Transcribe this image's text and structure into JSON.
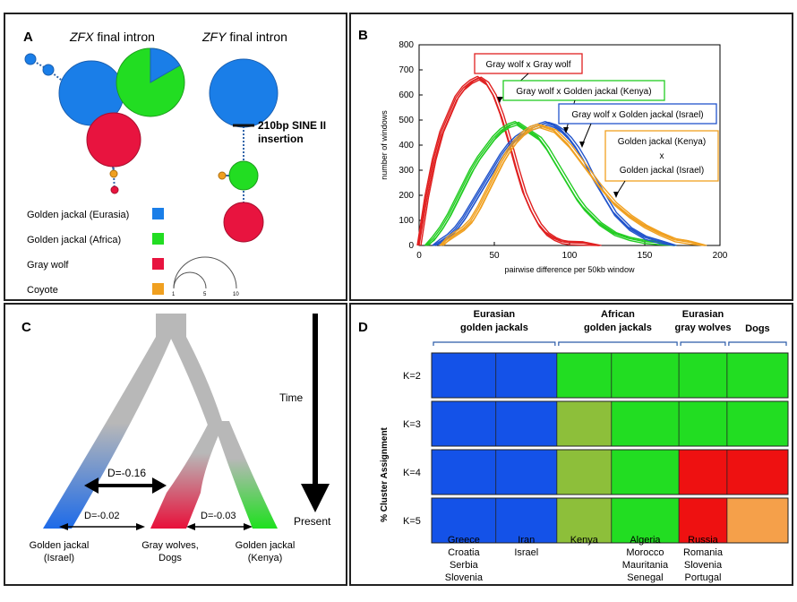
{
  "panelA": {
    "letter": "A",
    "zfx_italic": "ZFX",
    "zfx_rest": " final intron",
    "zfy_italic": "ZFY",
    "zfy_rest": " final intron",
    "sine_line1": "210bp SINE II",
    "sine_line2": "insertion",
    "legend": [
      {
        "label": "Golden jackal (Eurasia)",
        "color": "#1a7ee8"
      },
      {
        "label": "Golden jackal (Africa)",
        "color": "#22dd22"
      },
      {
        "label": "Gray wolf",
        "color": "#e8143f"
      },
      {
        "label": "Coyote",
        "color": "#f0a020"
      }
    ],
    "scale_labels": [
      "1",
      "5",
      "10"
    ]
  },
  "panelC": {
    "letter": "C",
    "time_label": "Time",
    "present_label": "Present",
    "d_main": "D=-0.16",
    "d_left": "D=-0.02",
    "d_right": "D=-0.03",
    "tip_left": [
      "Golden jackal",
      "(Israel)"
    ],
    "tip_mid": [
      "Gray wolves,",
      "Dogs"
    ],
    "tip_right": [
      "Golden jackal",
      "(Kenya)"
    ]
  },
  "chart_data": [
    {
      "type": "line",
      "panel": "B",
      "letter": "B",
      "xlabel": "pairwise difference per 50kb window",
      "ylabel": "number of windows",
      "xlim": [
        0,
        200
      ],
      "ylim": [
        0,
        800
      ],
      "xticks": [
        0,
        50,
        100,
        150,
        200
      ],
      "yticks": [
        0,
        100,
        200,
        300,
        400,
        500,
        600,
        700,
        800
      ],
      "series": [
        {
          "name": "Gray wolf x Gray wolf",
          "color": "#e02020",
          "x": [
            0,
            5,
            10,
            15,
            20,
            25,
            30,
            35,
            40,
            45,
            50,
            55,
            60,
            65,
            70,
            75,
            80,
            85,
            90,
            95,
            100,
            110,
            120
          ],
          "y": [
            0,
            180,
            330,
            440,
            510,
            580,
            620,
            645,
            660,
            640,
            590,
            510,
            410,
            300,
            200,
            130,
            75,
            40,
            20,
            8,
            3,
            1,
            0
          ]
        },
        {
          "name": "Gray wolf x Golden jackal (Kenya)",
          "color": "#22cc22",
          "x": [
            5,
            10,
            15,
            20,
            25,
            30,
            35,
            40,
            45,
            50,
            55,
            60,
            65,
            70,
            75,
            80,
            85,
            90,
            95,
            100,
            105,
            110,
            115,
            120,
            130,
            140,
            150,
            160,
            170
          ],
          "y": [
            0,
            20,
            60,
            110,
            170,
            230,
            290,
            340,
            380,
            420,
            450,
            470,
            480,
            460,
            440,
            420,
            380,
            330,
            280,
            230,
            180,
            140,
            110,
            80,
            40,
            20,
            8,
            3,
            0
          ]
        },
        {
          "name": "Gray wolf x Golden jackal (Israel)",
          "color": "#2255cc",
          "x": [
            10,
            15,
            20,
            25,
            30,
            35,
            40,
            45,
            50,
            55,
            60,
            65,
            70,
            75,
            80,
            85,
            90,
            95,
            100,
            105,
            110,
            115,
            120,
            125,
            130,
            140,
            150,
            160,
            170
          ],
          "y": [
            0,
            10,
            30,
            60,
            100,
            150,
            200,
            250,
            300,
            350,
            390,
            420,
            440,
            460,
            470,
            480,
            470,
            450,
            420,
            380,
            330,
            270,
            220,
            170,
            120,
            60,
            25,
            8,
            0
          ]
        },
        {
          "name": "Golden jackal (Kenya) x Golden jackal (Israel)",
          "color": "#f0a020",
          "x": [
            15,
            20,
            25,
            30,
            35,
            40,
            45,
            50,
            55,
            60,
            65,
            70,
            75,
            80,
            85,
            90,
            95,
            100,
            105,
            110,
            115,
            120,
            130,
            140,
            150,
            160,
            170,
            180,
            190
          ],
          "y": [
            0,
            20,
            40,
            60,
            90,
            140,
            200,
            260,
            320,
            370,
            410,
            440,
            460,
            470,
            460,
            450,
            420,
            390,
            350,
            310,
            270,
            230,
            160,
            110,
            70,
            40,
            15,
            5,
            0
          ]
        }
      ],
      "annotations": [
        {
          "lines": [
            "Gray wolf x Gray wolf"
          ],
          "color": "#e02020"
        },
        {
          "lines": [
            "Gray wolf x Golden jackal (Kenya)"
          ],
          "color": "#22cc22"
        },
        {
          "lines": [
            "Gray wolf x Golden jackal (Israel)"
          ],
          "color": "#2255cc"
        },
        {
          "lines": [
            "Golden jackal (Kenya)",
            "x",
            "Golden jackal (Israel)"
          ],
          "color": "#f0a020"
        }
      ]
    },
    {
      "type": "bar",
      "panel": "D",
      "letter": "D",
      "ylabel": "% Cluster Assignment",
      "group_headers": [
        {
          "lines": [
            "Eurasian",
            "golden jackals"
          ],
          "span": [
            0,
            2
          ]
        },
        {
          "lines": [
            "African",
            "golden jackals"
          ],
          "span": [
            2,
            4
          ]
        },
        {
          "lines": [
            "Eurasian",
            "gray wolves"
          ],
          "span": [
            4,
            5
          ]
        },
        {
          "lines": [
            "Dogs"
          ],
          "span": [
            5,
            6
          ]
        }
      ],
      "populations": [
        {
          "lines": [
            "Greece",
            "Croatia",
            "Serbia",
            "Slovenia"
          ],
          "width": 1.0
        },
        {
          "lines": [
            "Iran",
            "Israel"
          ],
          "width": 0.95
        },
        {
          "lines": [
            "Kenya"
          ],
          "width": 0.85
        },
        {
          "lines": [
            "Algeria",
            "Morocco",
            "Mauritania",
            "Senegal"
          ],
          "width": 1.05
        },
        {
          "lines": [
            "Russia",
            "Romania",
            "Slovenia",
            "Portugal"
          ],
          "width": 0.75
        },
        {
          "lines": [
            "",
            "",
            "",
            ""
          ],
          "width": 0.95
        }
      ],
      "cluster_colors": {
        "blue": "#1452e8",
        "green": "#22dd22",
        "olive": "#8dbf3a",
        "red": "#ee1111",
        "orange": "#f5a04a"
      },
      "rows": [
        {
          "k": "K=2",
          "pops": [
            "blue",
            "blue",
            "green",
            "green",
            "green",
            "green"
          ]
        },
        {
          "k": "K=3",
          "pops": [
            "blue",
            "blue",
            "olive",
            "green",
            "green",
            "green"
          ]
        },
        {
          "k": "K=4",
          "pops": [
            "blue",
            "blue",
            "olive",
            "green",
            "red",
            "red"
          ]
        },
        {
          "k": "K=5",
          "pops": [
            "blue",
            "blue",
            "olive",
            "green",
            "red",
            "orange"
          ]
        }
      ]
    }
  ]
}
